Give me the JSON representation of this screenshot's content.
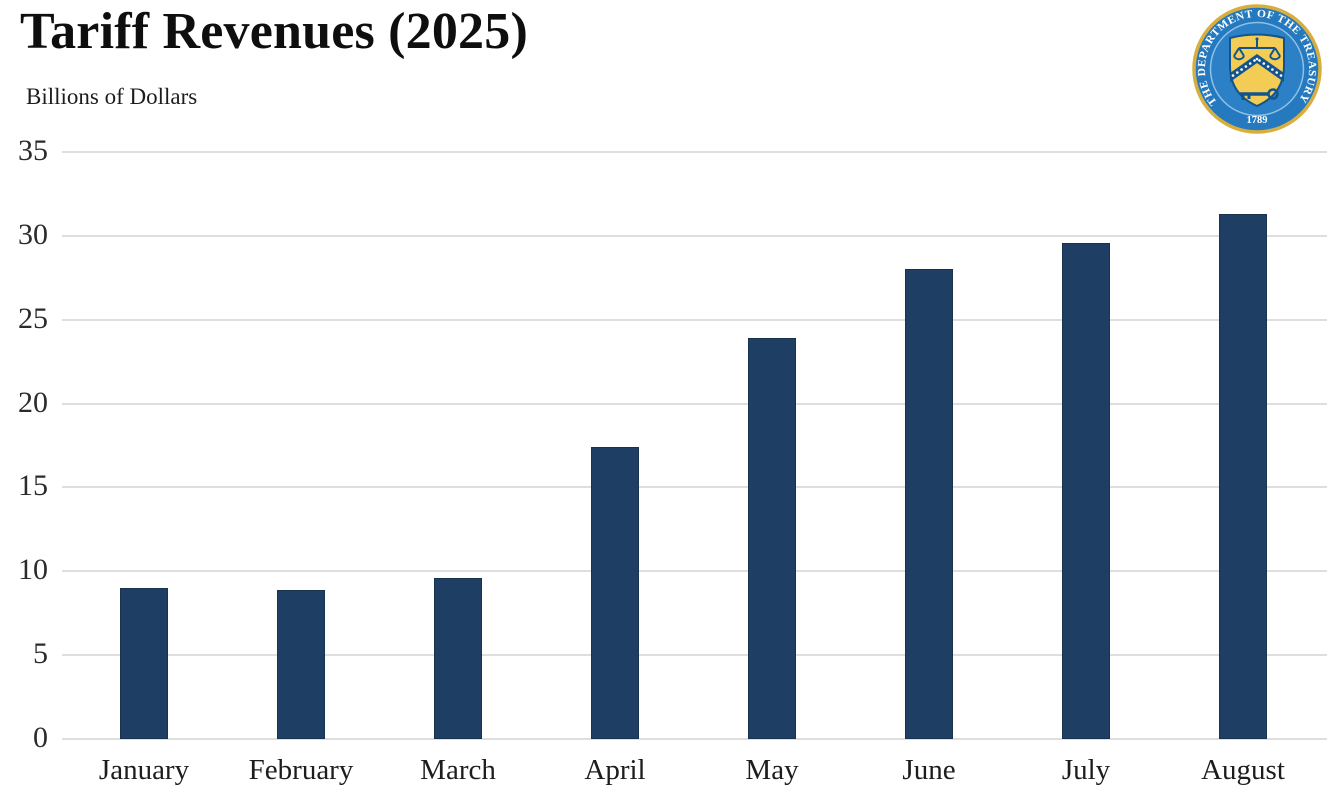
{
  "header": {
    "title": "Tariff Revenues (2025)",
    "subtitle": "Billions of Dollars"
  },
  "seal": {
    "ring_text": "THE DEPARTMENT OF THE TREASURY",
    "year": "1789",
    "ring_blue": "#2579be",
    "gold": "#f2cc54"
  },
  "chart_data": {
    "type": "bar",
    "title": "Tariff Revenues (2025)",
    "xlabel": "",
    "ylabel": "Billions of Dollars",
    "categories": [
      "January",
      "February",
      "March",
      "April",
      "May",
      "June",
      "July",
      "August"
    ],
    "values": [
      9.0,
      8.9,
      9.6,
      17.4,
      23.9,
      28.0,
      29.6,
      31.3
    ],
    "ylim": [
      0,
      35
    ],
    "yticks": [
      0,
      5,
      10,
      15,
      20,
      25,
      30,
      35
    ],
    "grid": true,
    "legend": "none",
    "bar_color": "#1e3e63",
    "gridline_color": "#dedede"
  }
}
